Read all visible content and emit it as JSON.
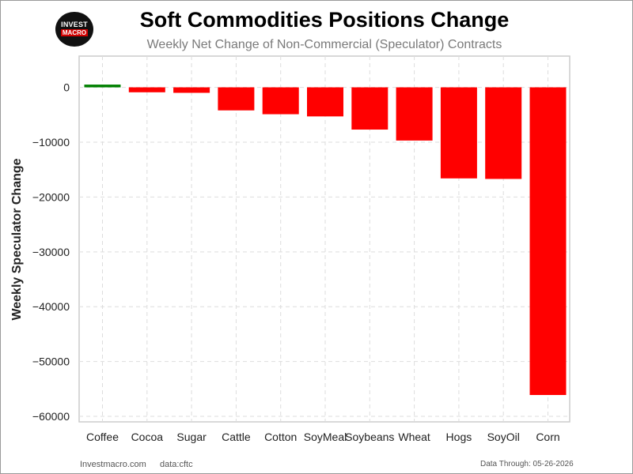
{
  "logo": {
    "line1": "INVEST",
    "line2": "MACRO"
  },
  "colors": {
    "positive": "#008000",
    "negative": "#ff0000",
    "grid": "#dddddd",
    "frame": "#cccccc"
  },
  "chart_data": {
    "type": "bar",
    "title": "Soft Commodities Positions Change",
    "subtitle": "Weekly Net Change of Non-Commercial (Speculator) Contracts",
    "xlabel": "",
    "ylabel": "Weekly Speculator Change",
    "categories": [
      "Coffee",
      "Cocoa",
      "Sugar",
      "Cattle",
      "Cotton",
      "SoyMeal",
      "Soybeans",
      "Wheat",
      "Hogs",
      "SoyOil",
      "Corn"
    ],
    "values": [
      500,
      -900,
      -1000,
      -4200,
      -4900,
      -5300,
      -7700,
      -9700,
      -16600,
      -16700,
      -56100
    ],
    "ylim": [
      -61000,
      5700
    ],
    "yticks": [
      0,
      -10000,
      -20000,
      -30000,
      -40000,
      -50000,
      -60000
    ],
    "ytick_labels": [
      "0",
      "−10000",
      "−20000",
      "−30000",
      "−40000",
      "−50000",
      "−60000"
    ],
    "grid": true,
    "legend": "none"
  },
  "footer": {
    "site": "Investmacro.com",
    "source": "data:cftc",
    "date": "Data Through: 05-26-2026"
  }
}
